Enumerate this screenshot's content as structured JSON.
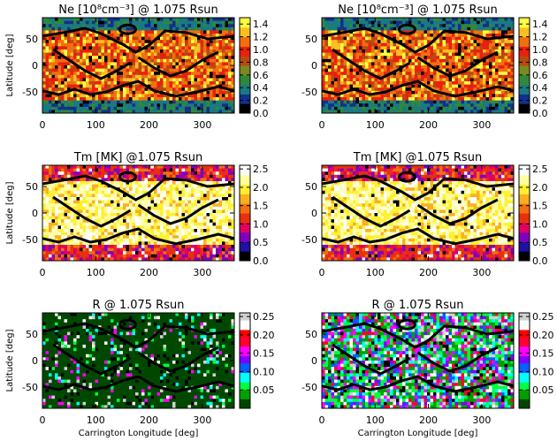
{
  "chart_data": {
    "type": "heatmap",
    "x_axis_label": "Carrington Longitude [deg]",
    "y_axis_label": "Latitude [deg]",
    "xlim": [
      0,
      360
    ],
    "ylim": [
      -90,
      90
    ],
    "x_ticks": [
      "0",
      "100",
      "200",
      "300"
    ],
    "y_ticks": [
      "50",
      "0",
      "-50"
    ],
    "rows": [
      {
        "quantity": "Ne",
        "title": "Ne [10⁸cm⁻³] @ 1.075 Rsun",
        "colorbar": {
          "min": 0.0,
          "max": 1.5,
          "ticks": [
            "0.0",
            "0.2",
            "0.4",
            "0.6",
            "0.8",
            "1.0",
            "1.2",
            "1.4"
          ],
          "tick_values": [
            0.0,
            0.2,
            0.4,
            0.6,
            0.8,
            1.0,
            1.2,
            1.4
          ]
        }
      },
      {
        "quantity": "Tm",
        "title": "Tm [MK] @1.075 Rsun",
        "colorbar": {
          "min": 0.0,
          "max": 2.6,
          "ticks": [
            "0.0",
            "0.5",
            "1.0",
            "1.5",
            "2.0",
            "2.5"
          ],
          "tick_values": [
            0.0,
            0.5,
            1.0,
            1.5,
            2.0,
            2.5
          ]
        }
      },
      {
        "quantity": "R",
        "title": "R @ 1.075 Rsun",
        "colorbar": {
          "min": 0.0,
          "max": 0.26,
          "ticks": [
            "0.05",
            "0.10",
            "0.15",
            "0.20",
            "0.25"
          ],
          "tick_values": [
            0.05,
            0.1,
            0.15,
            0.2,
            0.25
          ]
        }
      }
    ],
    "columns": [
      "left",
      "right"
    ],
    "colors": {
      "ne_scale": [
        "#000000",
        "#13308a",
        "#1a7a80",
        "#2e8a3a",
        "#7a8a20",
        "#b84a10",
        "#e82010",
        "#f07010",
        "#f8c020",
        "#ffff40"
      ],
      "tm_scale": [
        "#000000",
        "#2010a0",
        "#8000c0",
        "#e00060",
        "#e83010",
        "#f07010",
        "#f8b020",
        "#fff030",
        "#ffffa0",
        "#ffffff"
      ],
      "r_scale": [
        "#004800",
        "#00a000",
        "#00ff40",
        "#00ffff",
        "#0060ff",
        "#8000ff",
        "#ff00ff",
        "#ff0030",
        "#ff0000",
        "#ffffff",
        "#d0d0d0"
      ],
      "contour": "#000000"
    }
  }
}
